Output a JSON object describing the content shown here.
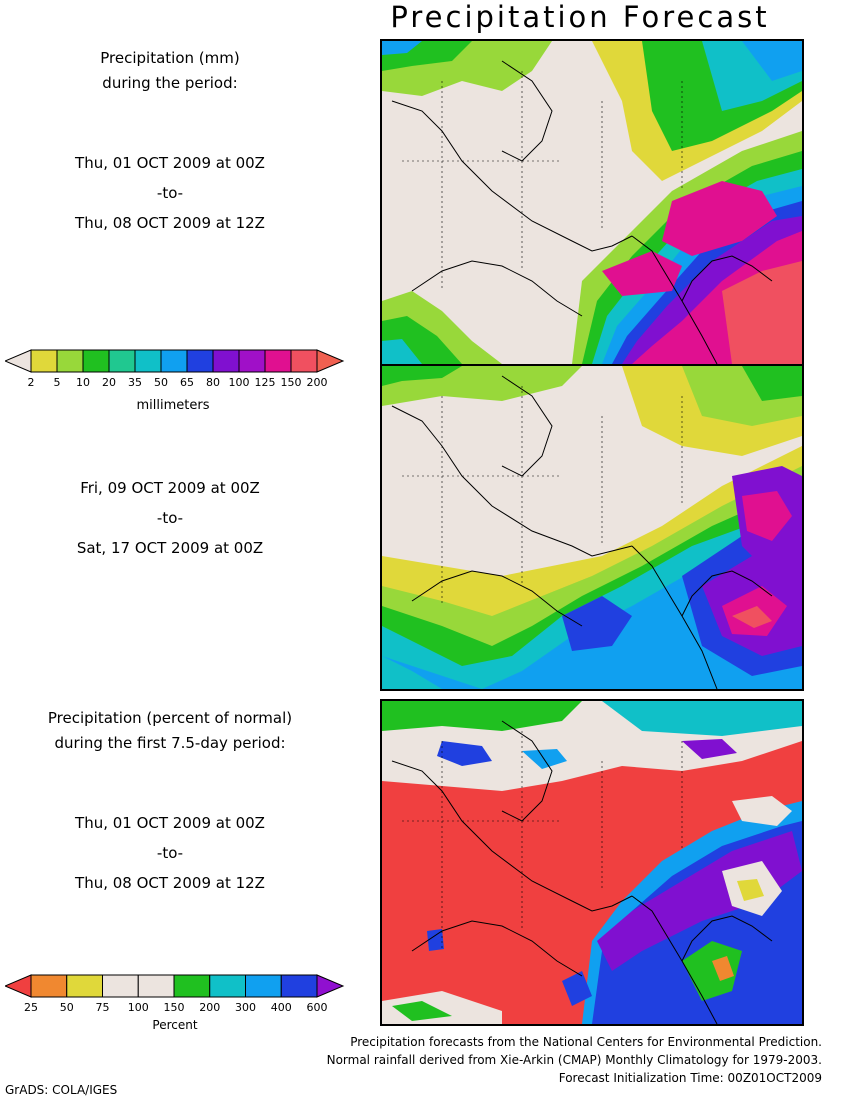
{
  "title": "Precipitation Forecast",
  "panel1": {
    "header_line1": "Precipitation (mm)",
    "header_line2": "during the period:",
    "start": "Thu, 01 OCT 2009 at 00Z",
    "to": "-to-",
    "end": "Thu, 08 OCT 2009 at 12Z"
  },
  "panel2": {
    "start": "Fri, 09 OCT 2009 at 00Z",
    "to": "-to-",
    "end": "Sat, 17 OCT 2009 at 00Z"
  },
  "panel3": {
    "header_line1": "Precipitation (percent of normal)",
    "header_line2": "during the first 7.5-day period:",
    "start": "Thu, 01 OCT 2009 at 00Z",
    "to": "-to-",
    "end": "Thu, 08 OCT 2009 at 12Z"
  },
  "colorbar_mm": {
    "unit_label": "millimeters",
    "ticks": [
      "2",
      "5",
      "10",
      "20",
      "35",
      "50",
      "65",
      "80",
      "100",
      "125",
      "150",
      "200"
    ],
    "colors": [
      "#ece4df",
      "#e0d83a",
      "#98d83a",
      "#20c020",
      "#20c890",
      "#10c0c8",
      "#10a0f0",
      "#2040e0",
      "#8010d0",
      "#a010c8",
      "#e01090",
      "#f05060",
      "#f06050"
    ]
  },
  "colorbar_pct": {
    "unit_label": "Percent",
    "ticks": [
      "25",
      "50",
      "75",
      "100",
      "150",
      "200",
      "300",
      "400",
      "600"
    ],
    "colors": [
      "#f04040",
      "#f08830",
      "#e0d83a",
      "#ece4df",
      "#ece4df",
      "#20c020",
      "#10c0c8",
      "#10a0f0",
      "#2040e0",
      "#9010d0"
    ]
  },
  "credits": {
    "line1": "Precipitation forecasts from the National Centers for Environmental Prediction.",
    "line2": "Normal rainfall derived from Xie-Arkin (CMAP) Monthly Climatology for 1979-2003.",
    "line3": "Forecast Initialization Time: 00Z01OCT2009"
  },
  "software": "GrADS: COLA/IGES"
}
